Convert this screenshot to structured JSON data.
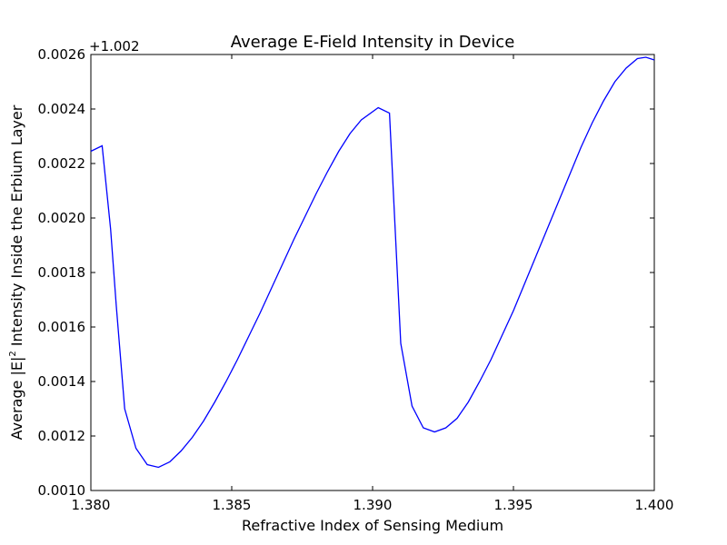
{
  "chart_data": {
    "type": "line",
    "title": "Average E-Field Intensity in Device",
    "xlabel": "Refractive Index of Sensing Medium",
    "ylabel_parts": [
      "Average |E|",
      "2",
      " Intensity Inside the Erbium Layer"
    ],
    "y_offset_label": "+1.002",
    "xlim": [
      1.38,
      1.4
    ],
    "ylim": [
      0.001,
      0.0026
    ],
    "x_ticks": [
      1.38,
      1.385,
      1.39,
      1.395,
      1.4
    ],
    "x_tick_labels": [
      "1.380",
      "1.385",
      "1.390",
      "1.395",
      "1.400"
    ],
    "y_ticks": [
      0.001,
      0.0012,
      0.0014,
      0.0016,
      0.0018,
      0.002,
      0.0022,
      0.0024,
      0.0026
    ],
    "y_tick_labels": [
      "0.0010",
      "0.0012",
      "0.0014",
      "0.0016",
      "0.0018",
      "0.0020",
      "0.0022",
      "0.0024",
      "0.0026"
    ],
    "grid": false,
    "line_color": "#0000ff",
    "series": [
      {
        "x": [
          1.38,
          1.3804,
          1.3807,
          1.3809,
          1.3812,
          1.3816,
          1.382,
          1.3824,
          1.3828,
          1.3832,
          1.3836,
          1.384,
          1.3844,
          1.3848,
          1.3852,
          1.3856,
          1.386,
          1.3864,
          1.3868,
          1.3872,
          1.3876,
          1.388,
          1.3884,
          1.3888,
          1.3892,
          1.3896,
          1.3902,
          1.3906,
          1.391,
          1.3914,
          1.3918,
          1.3922,
          1.3926,
          1.393,
          1.3934,
          1.3938,
          1.3942,
          1.3946,
          1.395,
          1.3954,
          1.3958,
          1.3962,
          1.3966,
          1.397,
          1.3974,
          1.3978,
          1.3982,
          1.3986,
          1.399,
          1.3994,
          1.3997,
          1.4
        ],
        "y": [
          0.002245,
          0.002265,
          0.00196,
          0.00168,
          0.0013,
          0.001155,
          0.001095,
          0.001085,
          0.001105,
          0.001145,
          0.001195,
          0.001255,
          0.001325,
          0.0014,
          0.00148,
          0.001565,
          0.00165,
          0.00174,
          0.00183,
          0.00192,
          0.002005,
          0.00209,
          0.00217,
          0.002245,
          0.00231,
          0.00236,
          0.002405,
          0.002385,
          0.00154,
          0.00131,
          0.00123,
          0.001215,
          0.00123,
          0.001265,
          0.001325,
          0.0014,
          0.00148,
          0.00157,
          0.00166,
          0.00176,
          0.00186,
          0.00196,
          0.00206,
          0.00216,
          0.00226,
          0.00235,
          0.00243,
          0.0025,
          0.00255,
          0.002585,
          0.00259,
          0.00258
        ]
      }
    ]
  }
}
